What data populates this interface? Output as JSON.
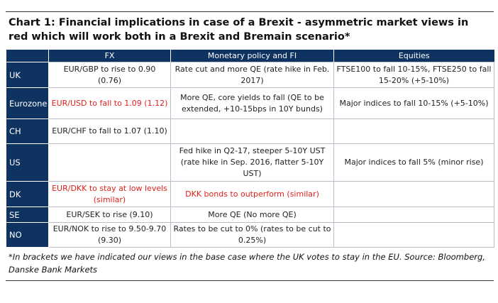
{
  "header": {
    "title": "Chart 1: Financial implications in case of a Brexit - asymmetric market views in red which will work both in a Brexit and Bremain scenario*"
  },
  "table": {
    "columns": [
      "FX",
      "Monetary policy and FI",
      "Equities"
    ],
    "rows": [
      {
        "label": "UK",
        "cells": [
          "EUR/GBP to rise to 0.90 (0.76)",
          "Rate cut and more QE (rate hike in Feb. 2017)",
          "FTSE100 to fall 10-15%, FTSE250 to fall 15-20% (+5-10%)"
        ]
      },
      {
        "label": "Eurozone",
        "cells": [
          {
            "text": "EUR/USD to fall to 1.09 (1.12)",
            "color": "#e3201b"
          },
          "More QE, core yields to fall (QE to be extended, +10-15bps in 10Y bunds)",
          "Major indices to fall 10-15% (+5-10%)"
        ]
      },
      {
        "label": "CH",
        "cells": [
          "EUR/CHF to fall to 1.07 (1.10)",
          null,
          null
        ]
      },
      {
        "label": "US",
        "cells": [
          null,
          "Fed hike in Q2-17, steeper 5-10Y UST (rate hike in Sep. 2016, flatter 5-10Y UST)",
          "Major indices to fall 5% (minor rise)"
        ]
      },
      {
        "label": "DK",
        "cells": [
          {
            "text": "EUR/DKK  to stay at low levels (similar)",
            "color": "#e3201b"
          },
          {
            "text": "DKK bonds to outperform (similar)",
            "color": "#e3201b"
          },
          null
        ]
      },
      {
        "label": "SE",
        "cells": [
          "EUR/SEK to rise (9.10)",
          "More QE (No more QE)",
          null
        ]
      },
      {
        "label": "NO",
        "cells": [
          "EUR/NOK to rise to 9.50-9.70 (9.30)",
          "Rates to be cut to 0% (rates to be cut to 0.25%)",
          null
        ]
      }
    ]
  },
  "footnote": "*In brackets we have indicated our views in the base case where the UK votes to stay in the EU. Source: Bloomberg, Danske Bank Markets"
}
